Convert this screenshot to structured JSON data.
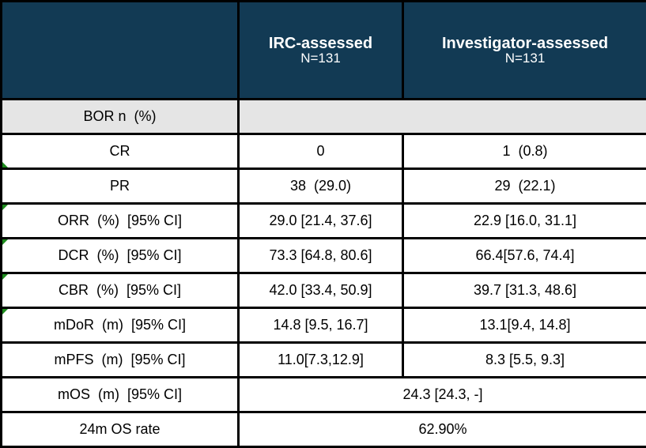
{
  "header": {
    "cols": [
      {
        "title": "",
        "subtitle": ""
      },
      {
        "title": "IRC-assessed",
        "subtitle": "N=131"
      },
      {
        "title": "Investigator-assessed",
        "subtitle": "N=131"
      }
    ]
  },
  "rows": [
    {
      "label": "BOR n  (%)",
      "merged_value": ""
    },
    {
      "label": "CR",
      "irc": "0",
      "inv": "1  (0.8)"
    },
    {
      "label": "PR",
      "irc": "38  (29.0)",
      "inv": "29  (22.1)"
    },
    {
      "label": "ORR  (%)  [95% CI]",
      "irc": "29.0 [21.4, 37.6]",
      "inv": "22.9 [16.0, 31.1]"
    },
    {
      "label": "DCR  (%)  [95% CI]",
      "irc": "73.3 [64.8, 80.6]",
      "inv": "66.4[57.6, 74.4]"
    },
    {
      "label": "CBR  (%)  [95% CI]",
      "irc": "42.0 [33.4, 50.9]",
      "inv": "39.7 [31.3, 48.6]"
    },
    {
      "label": "mDoR  (m)  [95% CI]",
      "irc": "14.8 [9.5, 16.7]",
      "inv": "13.1[9.4, 14.8]"
    },
    {
      "label": "mPFS  (m)  [95% CI]",
      "irc": "11.0[7.3,12.9]",
      "inv": "8.3 [5.5, 9.3]"
    },
    {
      "label": "mOS  (m)  [95% CI]",
      "merged_value": "24.3 [24.3, -]"
    },
    {
      "label": "24m OS rate",
      "merged_value": "62.90%"
    }
  ],
  "colors": {
    "header_bg": "#123a54",
    "header_text": "#ffffff",
    "section_bg": "#e5e5e5",
    "border": "#000000",
    "error_indicator": "#1e8c1e"
  }
}
